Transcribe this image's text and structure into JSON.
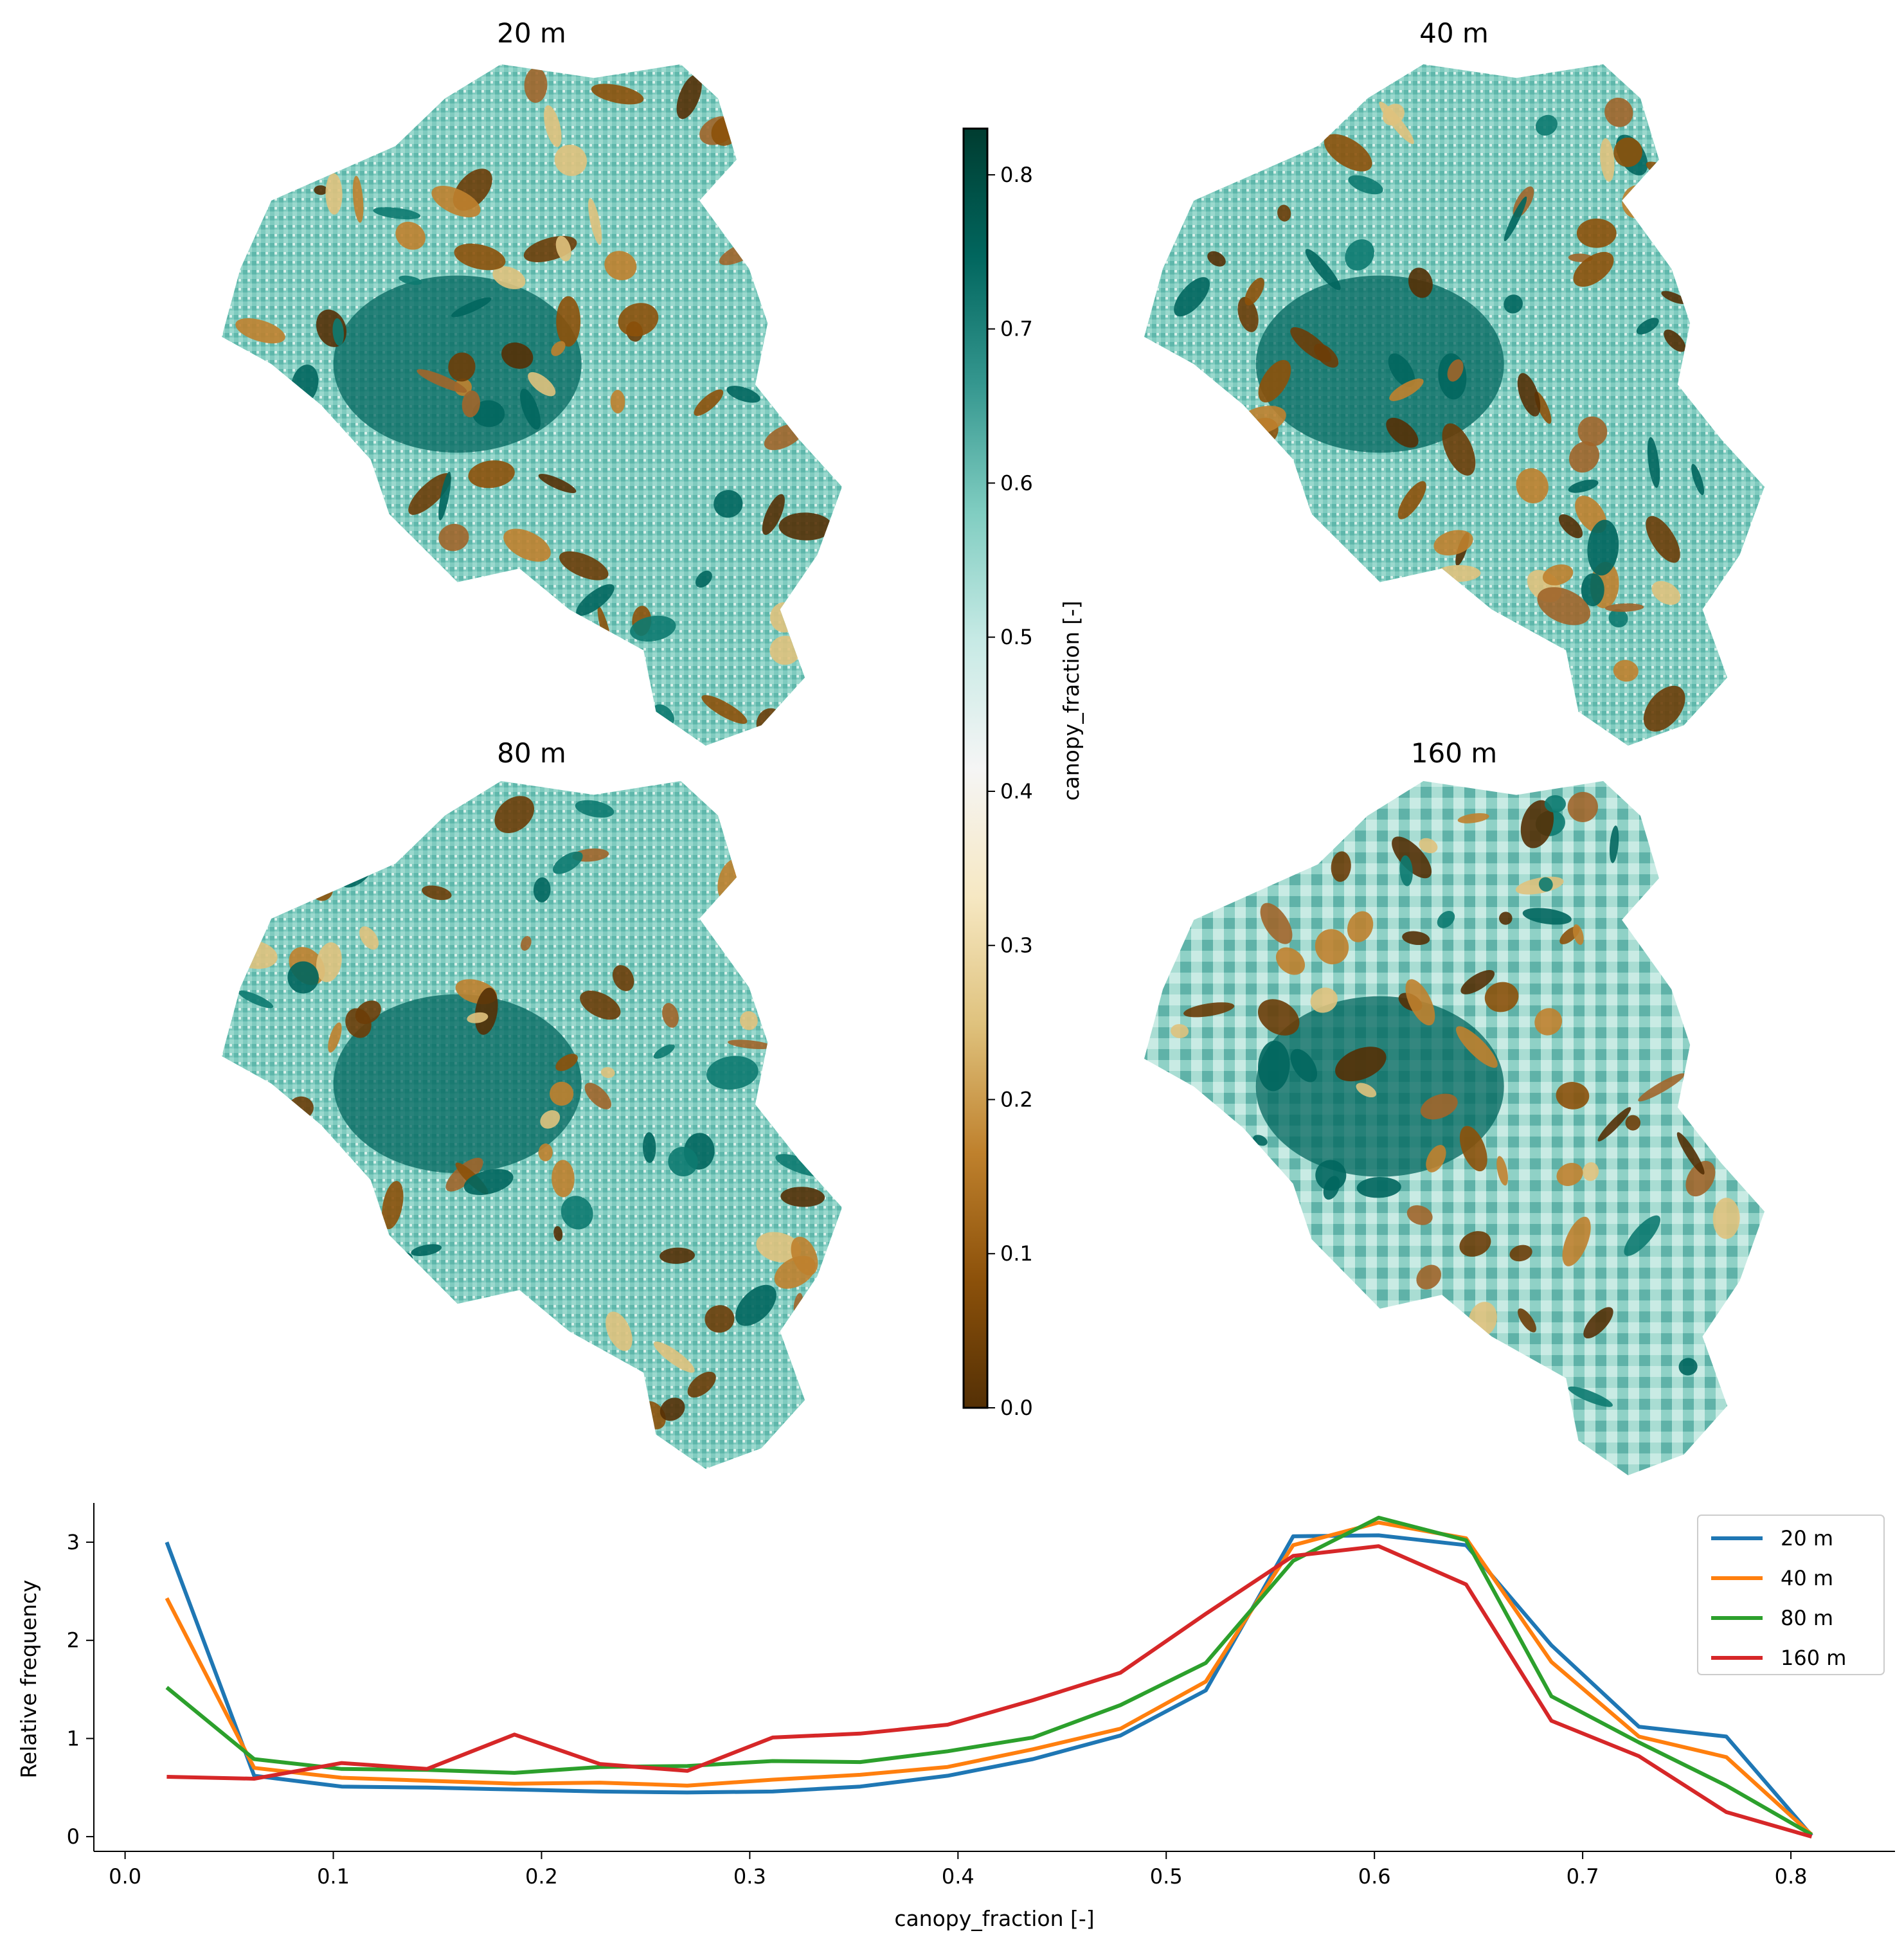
{
  "maps": [
    {
      "title": "20 m"
    },
    {
      "title": "40 m"
    },
    {
      "title": "80 m"
    },
    {
      "title": "160 m"
    }
  ],
  "colorbar": {
    "label": "canopy_fraction [-]",
    "range": [
      0.0,
      0.83
    ],
    "ticks": [
      "0.0",
      "0.1",
      "0.2",
      "0.3",
      "0.4",
      "0.5",
      "0.6",
      "0.7",
      "0.8"
    ],
    "colors": [
      "#543005",
      "#8c510a",
      "#bf812d",
      "#dfc27d",
      "#f6e8c3",
      "#f5f5f5",
      "#c7eae5",
      "#80cdc1",
      "#35978f",
      "#01665e",
      "#003c30"
    ]
  },
  "chart_data": {
    "type": "line",
    "xlabel": "canopy_fraction [-]",
    "ylabel": "Relative frequency",
    "xlim": [
      -0.015,
      0.85
    ],
    "ylim": [
      -0.15,
      3.4
    ],
    "xticks": [
      "0.0",
      "0.1",
      "0.2",
      "0.3",
      "0.4",
      "0.5",
      "0.6",
      "0.7",
      "0.8"
    ],
    "yticks": [
      "0",
      "1",
      "2",
      "3"
    ],
    "legend_position": "top-right",
    "x": [
      0.02,
      0.062,
      0.104,
      0.145,
      0.187,
      0.228,
      0.27,
      0.311,
      0.353,
      0.395,
      0.436,
      0.478,
      0.519,
      0.561,
      0.602,
      0.644,
      0.685,
      0.727,
      0.769,
      0.81
    ],
    "series": [
      {
        "name": "20 m",
        "color": "#1f77b4",
        "values": [
          3.0,
          0.62,
          0.51,
          0.5,
          0.48,
          0.46,
          0.45,
          0.46,
          0.51,
          0.62,
          0.79,
          1.03,
          1.49,
          3.06,
          3.07,
          2.97,
          1.95,
          1.12,
          1.02,
          0.01
        ]
      },
      {
        "name": "40 m",
        "color": "#ff7f0e",
        "values": [
          2.43,
          0.7,
          0.6,
          0.57,
          0.54,
          0.55,
          0.52,
          0.58,
          0.63,
          0.71,
          0.89,
          1.1,
          1.58,
          2.97,
          3.2,
          3.04,
          1.78,
          1.02,
          0.81,
          0.02
        ]
      },
      {
        "name": "80 m",
        "color": "#2ca02c",
        "values": [
          1.52,
          0.79,
          0.69,
          0.68,
          0.65,
          0.71,
          0.72,
          0.77,
          0.76,
          0.87,
          1.01,
          1.34,
          1.77,
          2.81,
          3.25,
          3.02,
          1.43,
          0.96,
          0.52,
          0.02
        ]
      },
      {
        "name": "160 m",
        "color": "#d62728",
        "values": [
          0.61,
          0.59,
          0.75,
          0.69,
          1.04,
          0.74,
          0.67,
          1.01,
          1.05,
          1.14,
          1.39,
          1.67,
          2.27,
          2.86,
          2.96,
          2.57,
          1.18,
          0.82,
          0.25,
          0.0
        ]
      }
    ]
  }
}
